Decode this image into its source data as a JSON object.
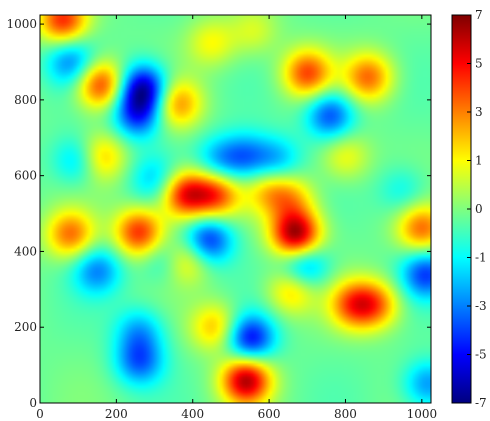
{
  "chart_data": {
    "type": "heatmap",
    "title": "",
    "xlabel": "",
    "ylabel": "",
    "xlim": [
      0,
      1024
    ],
    "ylim": [
      0,
      1024
    ],
    "x_ticks": [
      0,
      200,
      400,
      600,
      800,
      1000
    ],
    "y_ticks": [
      0,
      200,
      400,
      600,
      800,
      1000
    ],
    "colorbar": {
      "range": [
        -7,
        7
      ],
      "ticks": [
        7,
        5,
        3,
        1,
        0,
        -1,
        -3,
        -5,
        -7
      ],
      "colormap": "jet"
    },
    "background_value": -0.3,
    "blobs": [
      {
        "x": 670,
        "y": 445,
        "value": 7.0
      },
      {
        "x": 540,
        "y": 60,
        "value": 6.5
      },
      {
        "x": 380,
        "y": 550,
        "value": 5.5
      },
      {
        "x": 460,
        "y": 550,
        "value": 4.5
      },
      {
        "x": 160,
        "y": 840,
        "value": 5.0
      },
      {
        "x": 160,
        "y": 650,
        "value": 3.0
      },
      {
        "x": 260,
        "y": 450,
        "value": 5.0
      },
      {
        "x": 80,
        "y": 445,
        "value": 4.0
      },
      {
        "x": 60,
        "y": 1010,
        "value": 5.0
      },
      {
        "x": 360,
        "y": 790,
        "value": 3.5
      },
      {
        "x": 270,
        "y": 830,
        "value": -6.0
      },
      {
        "x": 255,
        "y": 760,
        "value": -4.0
      },
      {
        "x": 260,
        "y": 110,
        "value": -3.5
      },
      {
        "x": 550,
        "y": 170,
        "value": -5.0
      },
      {
        "x": 440,
        "y": 430,
        "value": -4.5
      },
      {
        "x": 540,
        "y": 650,
        "value": -3.0
      },
      {
        "x": 470,
        "y": 640,
        "value": -2.5
      },
      {
        "x": 760,
        "y": 760,
        "value": -4.0
      },
      {
        "x": 690,
        "y": 360,
        "value": -3.5
      },
      {
        "x": 1010,
        "y": 340,
        "value": -4.0
      },
      {
        "x": 150,
        "y": 350,
        "value": -3.0
      },
      {
        "x": 80,
        "y": 900,
        "value": -3.0
      },
      {
        "x": 100,
        "y": 640,
        "value": -2.5
      },
      {
        "x": 620,
        "y": 640,
        "value": -2.5
      },
      {
        "x": 1015,
        "y": 50,
        "value": -3.0
      },
      {
        "x": 330,
        "y": 380,
        "value": -2.0
      },
      {
        "x": 700,
        "y": 870,
        "value": 4.5
      },
      {
        "x": 860,
        "y": 860,
        "value": 4.0
      },
      {
        "x": 820,
        "y": 260,
        "value": 4.0
      },
      {
        "x": 880,
        "y": 260,
        "value": 3.5
      },
      {
        "x": 660,
        "y": 300,
        "value": 3.0
      },
      {
        "x": 1000,
        "y": 460,
        "value": 4.0
      },
      {
        "x": 380,
        "y": 380,
        "value": 3.0
      },
      {
        "x": 460,
        "y": 200,
        "value": 3.0
      },
      {
        "x": 800,
        "y": 650,
        "value": 2.0
      },
      {
        "x": 600,
        "y": 560,
        "value": 2.5
      },
      {
        "x": 660,
        "y": 540,
        "value": 2.5
      },
      {
        "x": 260,
        "y": 190,
        "value": -2.5
      },
      {
        "x": 300,
        "y": 590,
        "value": -2.0
      },
      {
        "x": 950,
        "y": 560,
        "value": -1.5
      },
      {
        "x": 450,
        "y": 950,
        "value": 2.0
      },
      {
        "x": 560,
        "y": 980,
        "value": 1.5
      }
    ]
  }
}
